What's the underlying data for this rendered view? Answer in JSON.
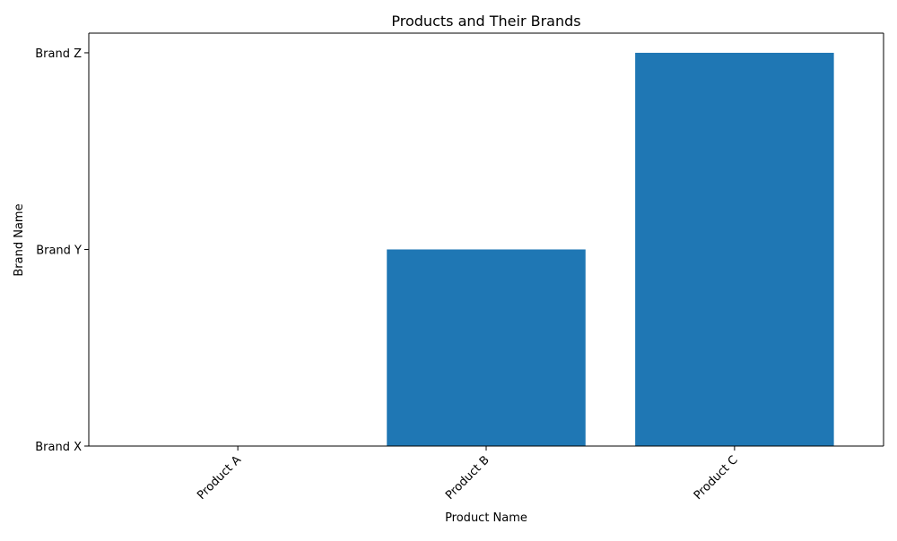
{
  "chart_data": {
    "type": "bar",
    "title": "Products and Their Brands",
    "xlabel": "Product Name",
    "ylabel": "Brand Name",
    "categories": [
      "Product A",
      "Product B",
      "Product C"
    ],
    "values": [
      0,
      1,
      2
    ],
    "y_ticks": [
      {
        "value": 0,
        "label": "Brand X"
      },
      {
        "value": 1,
        "label": "Brand Y"
      },
      {
        "value": 2,
        "label": "Brand Z"
      }
    ],
    "ylim": [
      0,
      2.1
    ],
    "grid": false,
    "bar_color": "#1f77b4"
  }
}
